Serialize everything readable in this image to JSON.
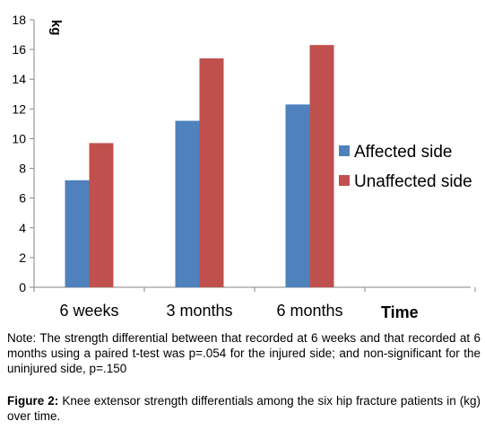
{
  "chart_data": {
    "type": "bar",
    "ylabel": "kg",
    "xlabel": "Time",
    "categories": [
      "6 weeks",
      "3 months",
      "6 months"
    ],
    "series": [
      {
        "name": "Affected side",
        "values": [
          7.2,
          11.2,
          12.3
        ],
        "color": "#4f81bd"
      },
      {
        "name": "Unaffected side",
        "values": [
          9.7,
          15.4,
          16.3
        ],
        "color": "#c0504d"
      }
    ],
    "ylim": [
      0,
      18
    ],
    "yticks": [
      "0",
      "2",
      "4",
      "6",
      "8",
      "10",
      "12",
      "14",
      "16",
      "18"
    ],
    "grid": false,
    "legend_position": "right"
  },
  "note": "Note: The strength differential between that recorded at 6 weeks and that recorded at 6 months using a paired t-test was p=.054 for the injured side; and non-significant for the uninjured side, p=.150",
  "caption": {
    "label": "Figure 2:",
    "text": " Knee extensor strength differentials among the six hip fracture patients in (kg) over time."
  }
}
